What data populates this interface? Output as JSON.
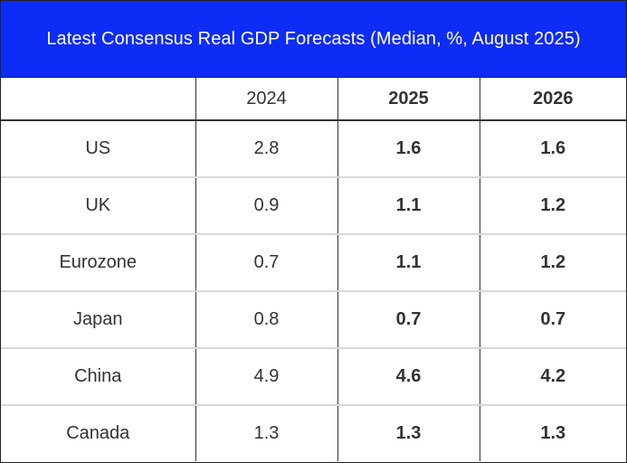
{
  "title": "Latest Consensus Real GDP Forecasts (Median, %, August 2025)",
  "colors": {
    "title_background": "#0d2cf5",
    "title_text": "#ffffff",
    "cell_text": "#333333"
  },
  "chart_data": {
    "type": "table",
    "title": "Latest Consensus Real GDP Forecasts (Median, %, August 2025)",
    "columns": [
      "",
      "2024",
      "2025",
      "2026"
    ],
    "rows": [
      {
        "country": "US",
        "y2024": "2.8",
        "y2025": "1.6",
        "y2026": "1.6"
      },
      {
        "country": "UK",
        "y2024": "0.9",
        "y2025": "1.1",
        "y2026": "1.2"
      },
      {
        "country": "Eurozone",
        "y2024": "0.7",
        "y2025": "1.1",
        "y2026": "1.2"
      },
      {
        "country": "Japan",
        "y2024": "0.8",
        "y2025": "0.7",
        "y2026": "0.7"
      },
      {
        "country": "China",
        "y2024": "4.9",
        "y2025": "4.6",
        "y2026": "4.2"
      },
      {
        "country": "Canada",
        "y2024": "1.3",
        "y2025": "1.3",
        "y2026": "1.3"
      }
    ]
  }
}
